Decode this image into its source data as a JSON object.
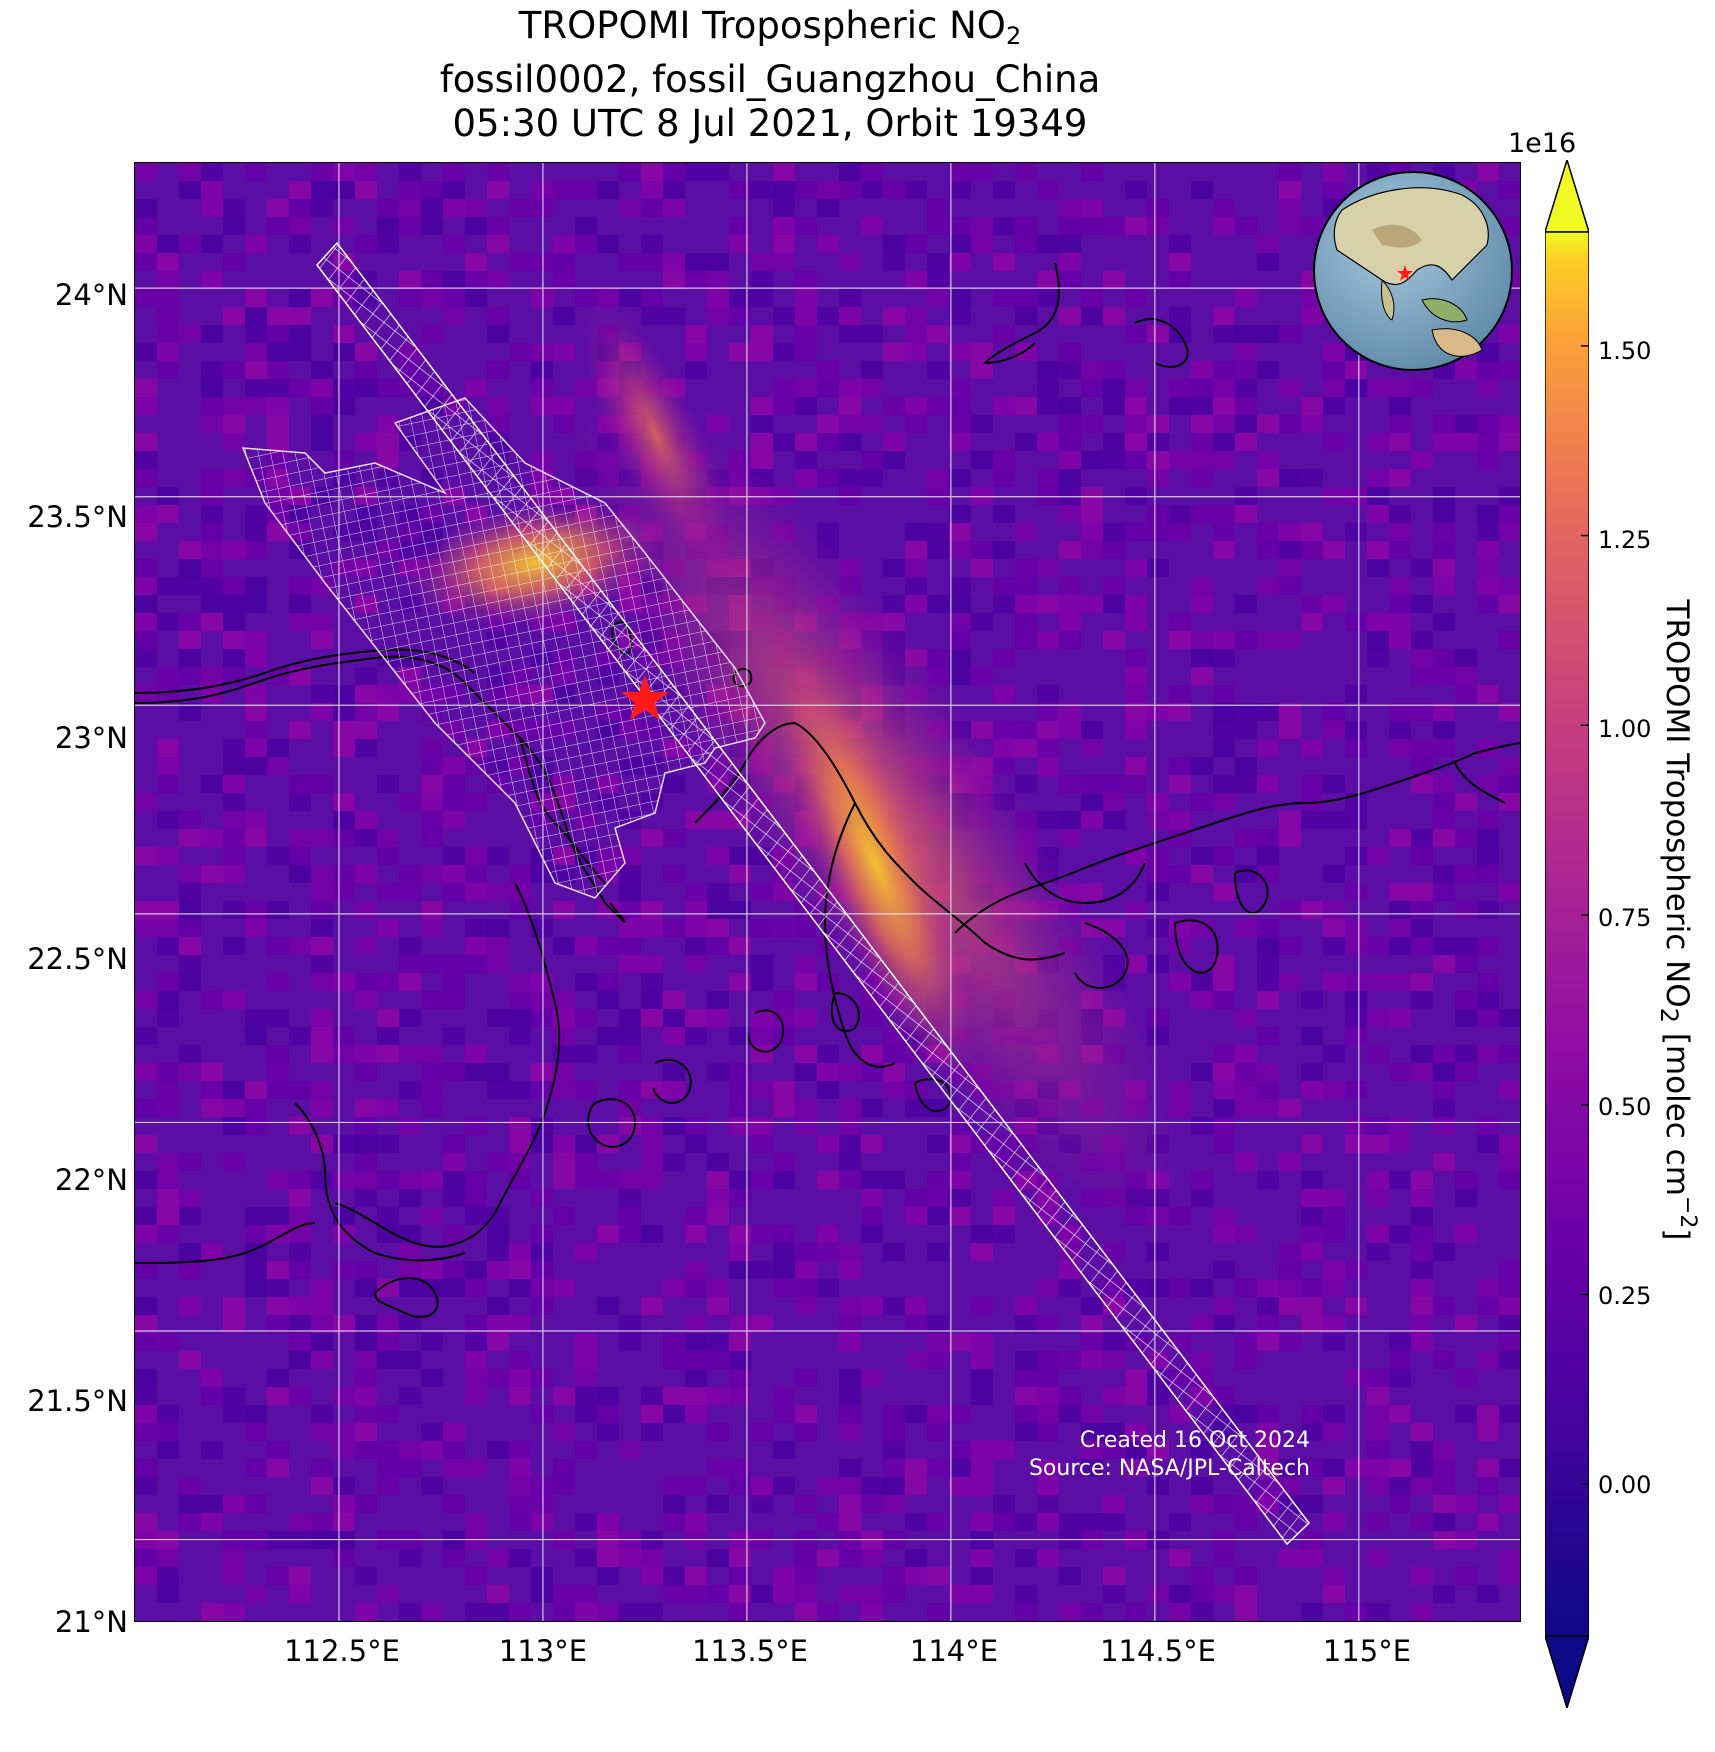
{
  "title": {
    "line1_prefix": "TROPOMI Tropospheric NO",
    "line1_sub": "2",
    "line2": "fossil0002, fossil_Guangzhou_China",
    "line3": "05:30 UTC 8 Jul 2021, Orbit 19349"
  },
  "map": {
    "lon_range": [
      112.0,
      115.4
    ],
    "lat_range": [
      20.8,
      24.3
    ],
    "y_ticks": [
      "24°N",
      "23.5°N",
      "23°N",
      "22.5°N",
      "22°N",
      "21.5°N",
      "21°N"
    ],
    "x_ticks": [
      "112.5°E",
      "113°E",
      "113.5°E",
      "114°E",
      "114.5°E",
      "115°E"
    ],
    "target_site": {
      "name": "fossil_Guangzhou_China",
      "lon": 113.25,
      "lat": 23.12,
      "marker": "red-star-icon"
    },
    "background_color": "#5a0ea4"
  },
  "colorbar": {
    "exponent": "1e16",
    "ticks": [
      "1.50",
      "1.25",
      "1.00",
      "0.75",
      "0.50",
      "0.25",
      "0.00"
    ],
    "tick_values": [
      1.5,
      1.25,
      1.0,
      0.75,
      0.5,
      0.25,
      0.0
    ],
    "range": [
      -0.2,
      1.65
    ],
    "label_prefix": "TROPOMI Tropospheric NO",
    "label_sub": "2",
    "label_mid": " [molec cm",
    "label_sup": "−2",
    "label_suffix": "]",
    "colormap": "plasma",
    "extend": "both"
  },
  "credit": {
    "line1": "Created 16 Oct 2024",
    "line2": "Source: NASA/JPL-Caltech"
  },
  "inset_globe": {
    "marker": "red-star-icon",
    "region": "East Asia"
  }
}
